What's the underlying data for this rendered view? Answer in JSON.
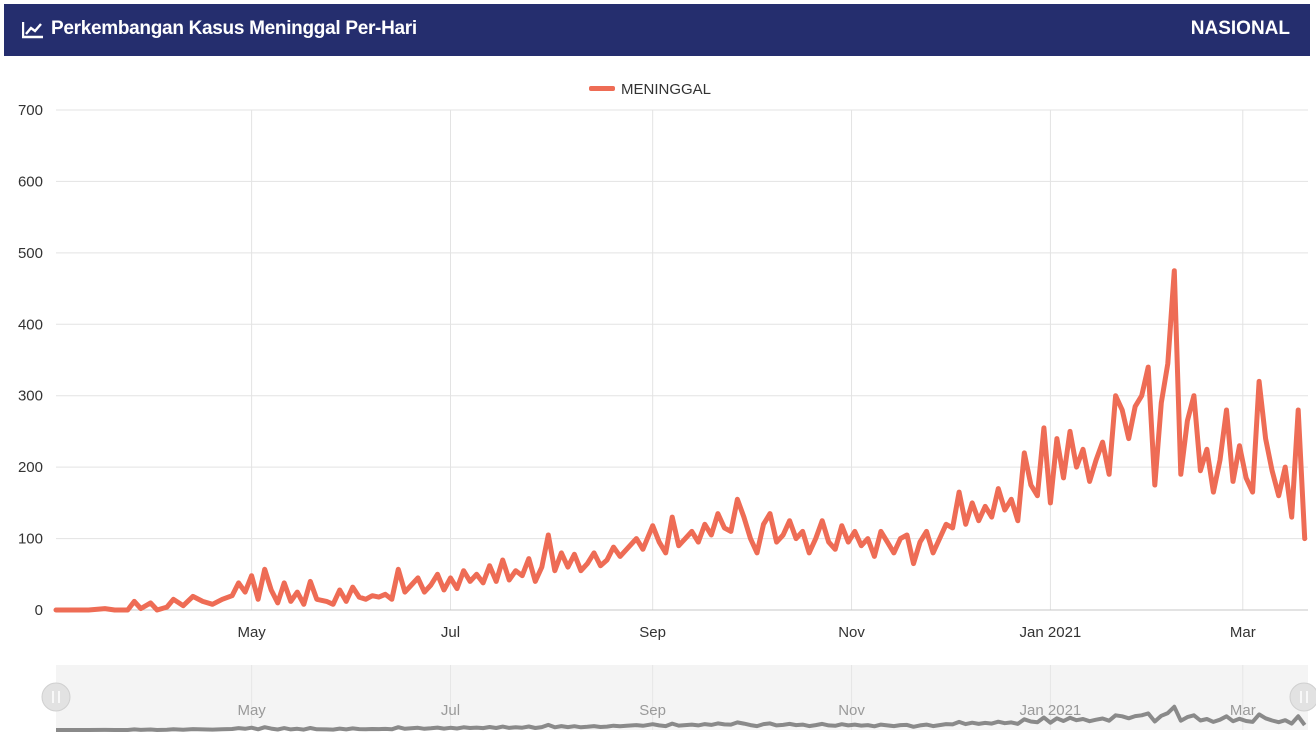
{
  "header": {
    "title": "Perkembangan Kasus Meninggal Per-Hari",
    "scope": "NASIONAL",
    "icon": "line-chart-icon",
    "background": "#252e6e"
  },
  "chart_data": {
    "type": "line",
    "title": "",
    "xlabel": "",
    "ylabel": "",
    "ylim": [
      0,
      700
    ],
    "yticks": [
      0,
      100,
      200,
      300,
      400,
      500,
      600,
      700
    ],
    "x_range": [
      "2020-03-02",
      "2021-03-21"
    ],
    "x_ticks": [
      {
        "date": "2020-05-01",
        "label": "May"
      },
      {
        "date": "2020-07-01",
        "label": "Jul"
      },
      {
        "date": "2020-09-01",
        "label": "Sep"
      },
      {
        "date": "2020-11-01",
        "label": "Nov"
      },
      {
        "date": "2021-01-01",
        "label": "Jan 2021"
      },
      {
        "date": "2021-03-01",
        "label": "Mar"
      }
    ],
    "grid": true,
    "legend_position": "top-center",
    "navigator": true,
    "series": [
      {
        "name": "MENINGGAL",
        "color": "#ee6c55",
        "points": [
          [
            "2020-03-02",
            0
          ],
          [
            "2020-03-12",
            0
          ],
          [
            "2020-03-17",
            2
          ],
          [
            "2020-03-20",
            0
          ],
          [
            "2020-03-24",
            0
          ],
          [
            "2020-03-26",
            12
          ],
          [
            "2020-03-28",
            2
          ],
          [
            "2020-03-31",
            10
          ],
          [
            "2020-04-02",
            0
          ],
          [
            "2020-04-05",
            4
          ],
          [
            "2020-04-07",
            15
          ],
          [
            "2020-04-10",
            6
          ],
          [
            "2020-04-13",
            19
          ],
          [
            "2020-04-16",
            12
          ],
          [
            "2020-04-19",
            8
          ],
          [
            "2020-04-22",
            15
          ],
          [
            "2020-04-25",
            20
          ],
          [
            "2020-04-27",
            38
          ],
          [
            "2020-04-29",
            25
          ],
          [
            "2020-05-01",
            48
          ],
          [
            "2020-05-03",
            15
          ],
          [
            "2020-05-05",
            57
          ],
          [
            "2020-05-07",
            28
          ],
          [
            "2020-05-09",
            10
          ],
          [
            "2020-05-11",
            38
          ],
          [
            "2020-05-13",
            12
          ],
          [
            "2020-05-15",
            25
          ],
          [
            "2020-05-17",
            8
          ],
          [
            "2020-05-19",
            40
          ],
          [
            "2020-05-21",
            15
          ],
          [
            "2020-05-24",
            12
          ],
          [
            "2020-05-26",
            8
          ],
          [
            "2020-05-28",
            28
          ],
          [
            "2020-05-30",
            12
          ],
          [
            "2020-06-01",
            32
          ],
          [
            "2020-06-03",
            18
          ],
          [
            "2020-06-05",
            15
          ],
          [
            "2020-06-07",
            20
          ],
          [
            "2020-06-09",
            18
          ],
          [
            "2020-06-11",
            22
          ],
          [
            "2020-06-13",
            15
          ],
          [
            "2020-06-15",
            57
          ],
          [
            "2020-06-17",
            25
          ],
          [
            "2020-06-19",
            35
          ],
          [
            "2020-06-21",
            45
          ],
          [
            "2020-06-23",
            25
          ],
          [
            "2020-06-25",
            35
          ],
          [
            "2020-06-27",
            50
          ],
          [
            "2020-06-29",
            28
          ],
          [
            "2020-07-01",
            45
          ],
          [
            "2020-07-03",
            30
          ],
          [
            "2020-07-05",
            55
          ],
          [
            "2020-07-07",
            40
          ],
          [
            "2020-07-09",
            50
          ],
          [
            "2020-07-11",
            38
          ],
          [
            "2020-07-13",
            62
          ],
          [
            "2020-07-15",
            40
          ],
          [
            "2020-07-17",
            70
          ],
          [
            "2020-07-19",
            42
          ],
          [
            "2020-07-21",
            55
          ],
          [
            "2020-07-23",
            48
          ],
          [
            "2020-07-25",
            72
          ],
          [
            "2020-07-27",
            40
          ],
          [
            "2020-07-29",
            60
          ],
          [
            "2020-07-31",
            105
          ],
          [
            "2020-08-02",
            55
          ],
          [
            "2020-08-04",
            80
          ],
          [
            "2020-08-06",
            60
          ],
          [
            "2020-08-08",
            78
          ],
          [
            "2020-08-10",
            55
          ],
          [
            "2020-08-12",
            65
          ],
          [
            "2020-08-14",
            80
          ],
          [
            "2020-08-16",
            62
          ],
          [
            "2020-08-18",
            70
          ],
          [
            "2020-08-20",
            88
          ],
          [
            "2020-08-22",
            75
          ],
          [
            "2020-08-24",
            85
          ],
          [
            "2020-08-27",
            100
          ],
          [
            "2020-08-29",
            85
          ],
          [
            "2020-09-01",
            118
          ],
          [
            "2020-09-03",
            95
          ],
          [
            "2020-09-05",
            80
          ],
          [
            "2020-09-07",
            130
          ],
          [
            "2020-09-09",
            90
          ],
          [
            "2020-09-11",
            100
          ],
          [
            "2020-09-13",
            110
          ],
          [
            "2020-09-15",
            95
          ],
          [
            "2020-09-17",
            120
          ],
          [
            "2020-09-19",
            105
          ],
          [
            "2020-09-21",
            135
          ],
          [
            "2020-09-23",
            115
          ],
          [
            "2020-09-25",
            110
          ],
          [
            "2020-09-27",
            155
          ],
          [
            "2020-09-29",
            130
          ],
          [
            "2020-10-01",
            100
          ],
          [
            "2020-10-03",
            80
          ],
          [
            "2020-10-05",
            120
          ],
          [
            "2020-10-07",
            135
          ],
          [
            "2020-10-09",
            95
          ],
          [
            "2020-10-11",
            105
          ],
          [
            "2020-10-13",
            125
          ],
          [
            "2020-10-15",
            100
          ],
          [
            "2020-10-17",
            110
          ],
          [
            "2020-10-19",
            80
          ],
          [
            "2020-10-21",
            100
          ],
          [
            "2020-10-23",
            125
          ],
          [
            "2020-10-25",
            95
          ],
          [
            "2020-10-27",
            85
          ],
          [
            "2020-10-29",
            118
          ],
          [
            "2020-10-31",
            95
          ],
          [
            "2020-11-02",
            110
          ],
          [
            "2020-11-04",
            90
          ],
          [
            "2020-11-06",
            100
          ],
          [
            "2020-11-08",
            75
          ],
          [
            "2020-11-10",
            110
          ],
          [
            "2020-11-12",
            95
          ],
          [
            "2020-11-14",
            80
          ],
          [
            "2020-11-16",
            100
          ],
          [
            "2020-11-18",
            105
          ],
          [
            "2020-11-20",
            65
          ],
          [
            "2020-11-22",
            95
          ],
          [
            "2020-11-24",
            110
          ],
          [
            "2020-11-26",
            80
          ],
          [
            "2020-11-28",
            100
          ],
          [
            "2020-11-30",
            120
          ],
          [
            "2020-12-02",
            115
          ],
          [
            "2020-12-04",
            165
          ],
          [
            "2020-12-06",
            120
          ],
          [
            "2020-12-08",
            150
          ],
          [
            "2020-12-10",
            125
          ],
          [
            "2020-12-12",
            145
          ],
          [
            "2020-12-14",
            130
          ],
          [
            "2020-12-16",
            170
          ],
          [
            "2020-12-18",
            140
          ],
          [
            "2020-12-20",
            155
          ],
          [
            "2020-12-22",
            125
          ],
          [
            "2020-12-24",
            220
          ],
          [
            "2020-12-26",
            175
          ],
          [
            "2020-12-28",
            160
          ],
          [
            "2020-12-30",
            255
          ],
          [
            "2021-01-01",
            150
          ],
          [
            "2021-01-03",
            240
          ],
          [
            "2021-01-05",
            185
          ],
          [
            "2021-01-07",
            250
          ],
          [
            "2021-01-09",
            200
          ],
          [
            "2021-01-11",
            225
          ],
          [
            "2021-01-13",
            180
          ],
          [
            "2021-01-15",
            210
          ],
          [
            "2021-01-17",
            235
          ],
          [
            "2021-01-19",
            190
          ],
          [
            "2021-01-21",
            300
          ],
          [
            "2021-01-23",
            280
          ],
          [
            "2021-01-25",
            240
          ],
          [
            "2021-01-27",
            285
          ],
          [
            "2021-01-29",
            300
          ],
          [
            "2021-01-31",
            340
          ],
          [
            "2021-02-02",
            175
          ],
          [
            "2021-02-04",
            290
          ],
          [
            "2021-02-06",
            345
          ],
          [
            "2021-02-08",
            475
          ],
          [
            "2021-02-10",
            190
          ],
          [
            "2021-02-12",
            265
          ],
          [
            "2021-02-14",
            300
          ],
          [
            "2021-02-16",
            195
          ],
          [
            "2021-02-18",
            225
          ],
          [
            "2021-02-20",
            165
          ],
          [
            "2021-02-22",
            210
          ],
          [
            "2021-02-24",
            280
          ],
          [
            "2021-02-26",
            180
          ],
          [
            "2021-02-28",
            230
          ],
          [
            "2021-03-02",
            185
          ],
          [
            "2021-03-04",
            165
          ],
          [
            "2021-03-06",
            320
          ],
          [
            "2021-03-08",
            240
          ],
          [
            "2021-03-10",
            195
          ],
          [
            "2021-03-12",
            160
          ],
          [
            "2021-03-14",
            200
          ],
          [
            "2021-03-16",
            130
          ],
          [
            "2021-03-18",
            280
          ],
          [
            "2021-03-20",
            100
          ]
        ]
      }
    ]
  }
}
